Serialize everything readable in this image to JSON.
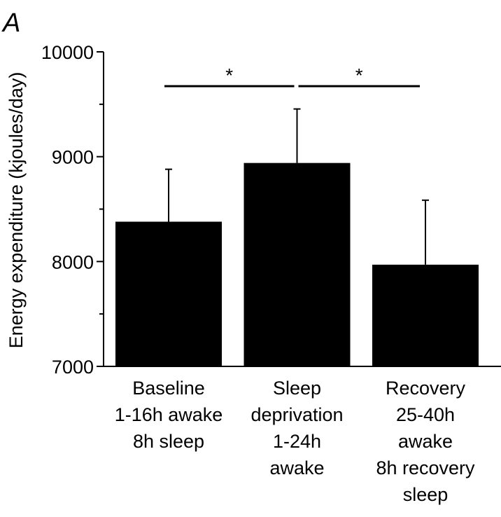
{
  "panel_label": "A",
  "chart_data": {
    "type": "bar",
    "ylabel": "Energy expenditure (kjoules/day)",
    "ylim": [
      7000,
      10000
    ],
    "yticks": [
      7000,
      8000,
      9000,
      10000
    ],
    "ytick_labels": [
      "7000",
      "8000",
      "9000",
      "10000"
    ],
    "categories": [
      [
        "Baseline",
        "1-16h awake",
        "8h sleep"
      ],
      [
        "Sleep",
        "deprivation",
        "1-24h",
        "awake"
      ],
      [
        "Recovery",
        "25-40h",
        "awake",
        "8h recovery",
        "sleep"
      ]
    ],
    "values": [
      8380,
      8940,
      7970
    ],
    "error_upper": [
      8880,
      9455,
      8585
    ],
    "bar_color": "#000000",
    "significance": [
      {
        "from": 0,
        "to": 1,
        "label": "*"
      },
      {
        "from": 1,
        "to": 2,
        "label": "*"
      }
    ],
    "grid": false,
    "legend": "none"
  }
}
